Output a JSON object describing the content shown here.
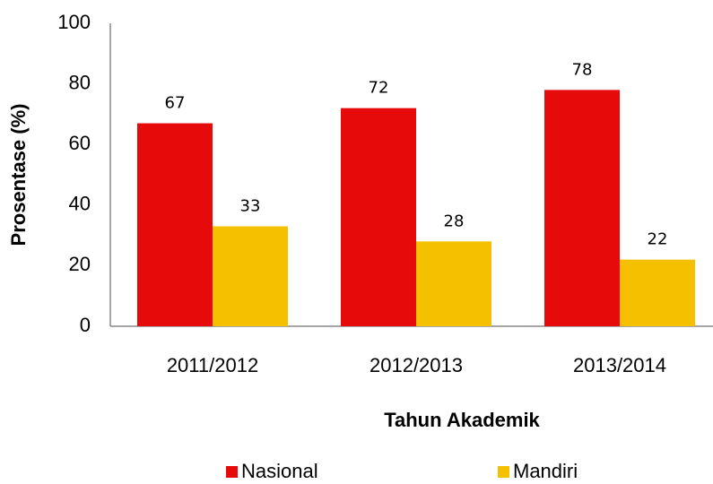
{
  "chart_data": {
    "type": "bar",
    "xlabel": "Tahun Akademik",
    "ylabel": "Prosentase (%)",
    "categories": [
      "2011/2012",
      "2012/2013",
      "2013/2014"
    ],
    "series": [
      {
        "name": "Nasional",
        "color": "#e60a0a",
        "values": [
          67,
          72,
          78
        ]
      },
      {
        "name": "Mandiri",
        "color": "#f5c000",
        "values": [
          33,
          28,
          22
        ]
      }
    ],
    "ylim": [
      0,
      100
    ],
    "yticks": [
      0,
      20,
      40,
      60,
      80,
      100
    ],
    "grid": false,
    "legend": "bottom"
  }
}
